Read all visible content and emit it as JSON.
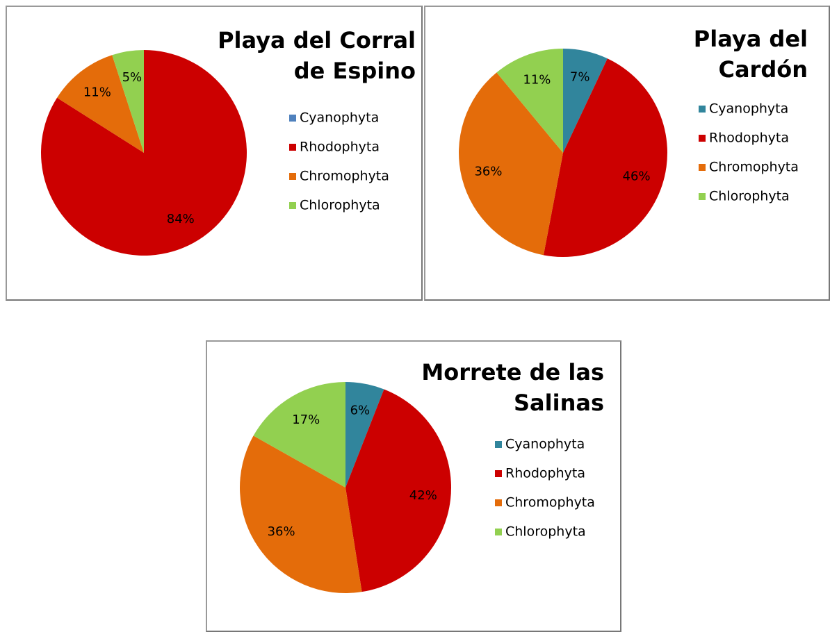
{
  "chart_data": [
    {
      "type": "pie",
      "title": "Playa del Corral de Espino",
      "categories": [
        "Cyanophyta",
        "Rhodophyta",
        "Chromophyta",
        "Chlorophyta"
      ],
      "values": [
        0,
        84,
        11,
        5
      ],
      "value_labels": [
        null,
        "84%",
        "11%",
        "5%"
      ],
      "colors": [
        "#4f81bd",
        "#cc0000",
        "#e46c0a",
        "#92d050"
      ]
    },
    {
      "type": "pie",
      "title": "Playa del Cardón",
      "categories": [
        "Cyanophyta",
        "Rhodophyta",
        "Chromophyta",
        "Chlorophyta"
      ],
      "values": [
        7,
        46,
        36,
        11
      ],
      "value_labels": [
        "7%",
        "46%",
        "36%",
        "11%"
      ],
      "colors": [
        "#31859c",
        "#cc0000",
        "#e46c0a",
        "#92d050"
      ]
    },
    {
      "type": "pie",
      "title": "Morrete de las Salinas",
      "categories": [
        "Cyanophyta",
        "Rhodophyta",
        "Chromophyta",
        "Chlorophyta"
      ],
      "values": [
        6,
        42,
        36,
        17
      ],
      "value_labels": [
        "6%",
        "42%",
        "36%",
        "17%"
      ],
      "colors": [
        "#31859c",
        "#cc0000",
        "#e46c0a",
        "#92d050"
      ]
    }
  ]
}
